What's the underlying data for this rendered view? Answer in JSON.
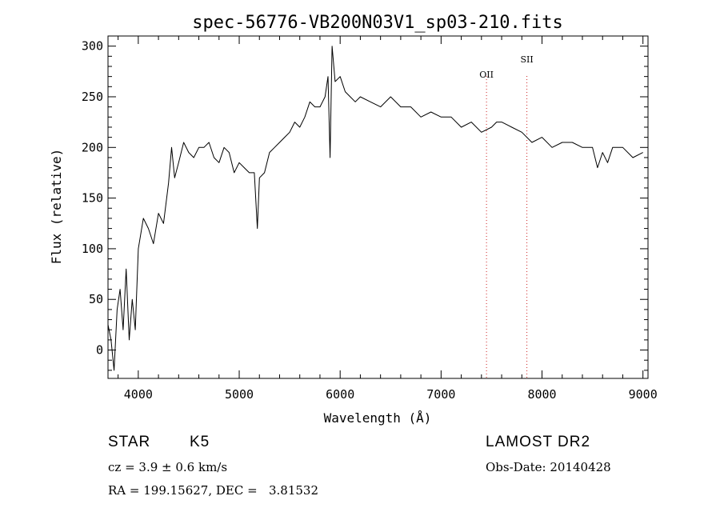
{
  "chart_data": {
    "type": "line",
    "title": "spec-56776-VB200N03V1_sp03-210.fits",
    "xlabel": "Wavelength (Å)",
    "ylabel": "Flux (relative)",
    "xlim": [
      3700,
      9050
    ],
    "ylim": [
      -28,
      310
    ],
    "xticks": [
      4000,
      5000,
      6000,
      7000,
      8000,
      9000
    ],
    "xtick_labels": [
      "4000",
      "5000",
      "6000",
      "7000",
      "8000",
      "9000"
    ],
    "yticks": [
      0,
      50,
      100,
      150,
      200,
      250,
      300
    ],
    "ytick_labels": [
      "0",
      "50",
      "100",
      "150",
      "200",
      "250",
      "300"
    ],
    "grid": false,
    "line_color": "#000000",
    "marker_color": "#cc2222",
    "emission_lines": [
      {
        "label": "OII",
        "wavelength": 7450
      },
      {
        "label": "SII",
        "wavelength": 7850
      }
    ],
    "series": [
      {
        "x": [
          3700,
          3730,
          3760,
          3790,
          3820,
          3850,
          3880,
          3910,
          3940,
          3970,
          4000,
          4050,
          4100,
          4150,
          4200,
          4250,
          4300,
          4330,
          4360,
          4400,
          4450,
          4500,
          4550,
          4600,
          4650,
          4700,
          4750,
          4800,
          4850,
          4900,
          4950,
          5000,
          5050,
          5100,
          5150,
          5180,
          5200,
          5250,
          5300,
          5350,
          5400,
          5450,
          5500,
          5550,
          5600,
          5650,
          5700,
          5750,
          5800,
          5850,
          5880,
          5900,
          5920,
          5950,
          6000,
          6050,
          6100,
          6150,
          6200,
          6300,
          6400,
          6500,
          6600,
          6700,
          6800,
          6900,
          7000,
          7100,
          7200,
          7300,
          7400,
          7500,
          7550,
          7600,
          7700,
          7800,
          7900,
          8000,
          8100,
          8200,
          8300,
          8400,
          8500,
          8550,
          8600,
          8650,
          8700,
          8800,
          8900,
          9000
        ],
        "y": [
          25,
          10,
          -20,
          40,
          60,
          20,
          80,
          10,
          50,
          20,
          100,
          130,
          120,
          105,
          135,
          125,
          165,
          200,
          170,
          185,
          205,
          195,
          190,
          200,
          200,
          205,
          190,
          185,
          200,
          195,
          175,
          185,
          180,
          175,
          175,
          120,
          170,
          175,
          195,
          200,
          205,
          210,
          215,
          225,
          220,
          230,
          245,
          240,
          240,
          250,
          270,
          190,
          300,
          265,
          270,
          255,
          250,
          245,
          250,
          245,
          240,
          250,
          240,
          240,
          230,
          235,
          230,
          230,
          220,
          225,
          215,
          220,
          225,
          225,
          220,
          215,
          205,
          210,
          200,
          205,
          205,
          200,
          200,
          180,
          195,
          185,
          200,
          200,
          190,
          195
        ]
      }
    ]
  },
  "info": {
    "object_class": "STAR",
    "subclass": "K5",
    "redshift": "cz = 3.9 ± 0.6 km/s",
    "coords": "RA = 199.15627, DEC =   3.81532",
    "survey": "LAMOST DR2",
    "obs_date": "Obs-Date: 20140428"
  }
}
